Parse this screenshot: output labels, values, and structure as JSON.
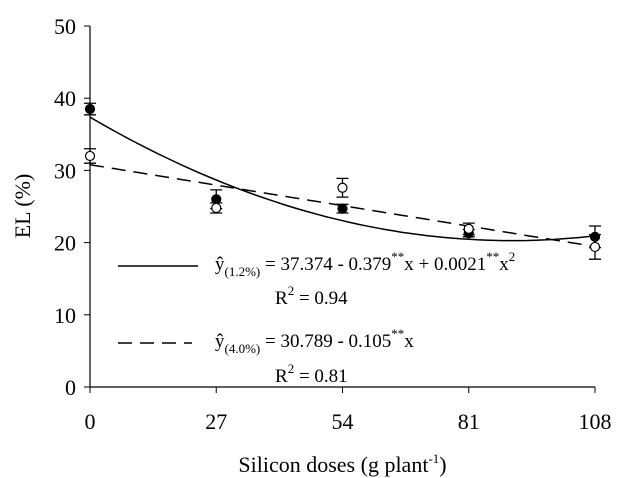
{
  "chart_data": {
    "type": "scatter",
    "x": [
      0,
      27,
      54,
      81,
      108
    ],
    "xlim": [
      0,
      108
    ],
    "xticks": [
      0,
      27,
      54,
      81,
      108
    ],
    "ylim": [
      0,
      50
    ],
    "yticks": [
      0,
      10,
      20,
      30,
      40,
      50
    ],
    "ylabel": "EL (%)",
    "xlabel": [
      {
        "t": "Silicon doses (g plant"
      },
      {
        "t": "-1",
        "s": "sup"
      },
      {
        "t": ")"
      }
    ],
    "series": [
      {
        "marker": "filled",
        "line": "solid",
        "color": "#000000",
        "values": [
          38.5,
          26.0,
          24.7,
          21.3,
          20.8
        ],
        "errors": [
          0.8,
          1.3,
          0.6,
          0.5,
          1.5
        ],
        "fit": [
          37.374,
          -0.379,
          0.0021
        ],
        "equation": [
          {
            "t": "ŷ"
          },
          {
            "t": "(1.2%)",
            "s": "sub"
          },
          {
            "t": " = 37.374 - 0.379"
          },
          {
            "t": "**",
            "s": "sup"
          },
          {
            "t": "x + 0.0021"
          },
          {
            "t": "**",
            "s": "sup"
          },
          {
            "t": "x"
          },
          {
            "t": "2",
            "s": "sup"
          }
        ],
        "r2": [
          {
            "t": "R"
          },
          {
            "t": "2",
            "s": "sup"
          },
          {
            "t": " = 0.94"
          }
        ]
      },
      {
        "marker": "open",
        "line": "dashed",
        "color": "#000000",
        "values": [
          32.0,
          24.8,
          27.6,
          21.9,
          19.4
        ],
        "errors": [
          1.0,
          0.7,
          1.3,
          0.8,
          1.7
        ],
        "fit": [
          30.789,
          -0.105,
          0
        ],
        "equation": [
          {
            "t": "ŷ"
          },
          {
            "t": "(4.0%)",
            "s": "sub"
          },
          {
            "t": " = 30.789 - 0.105"
          },
          {
            "t": "**",
            "s": "sup"
          },
          {
            "t": "x"
          }
        ],
        "r2": [
          {
            "t": "R"
          },
          {
            "t": "2",
            "s": "sup"
          },
          {
            "t": " = 0.81"
          }
        ]
      }
    ]
  }
}
